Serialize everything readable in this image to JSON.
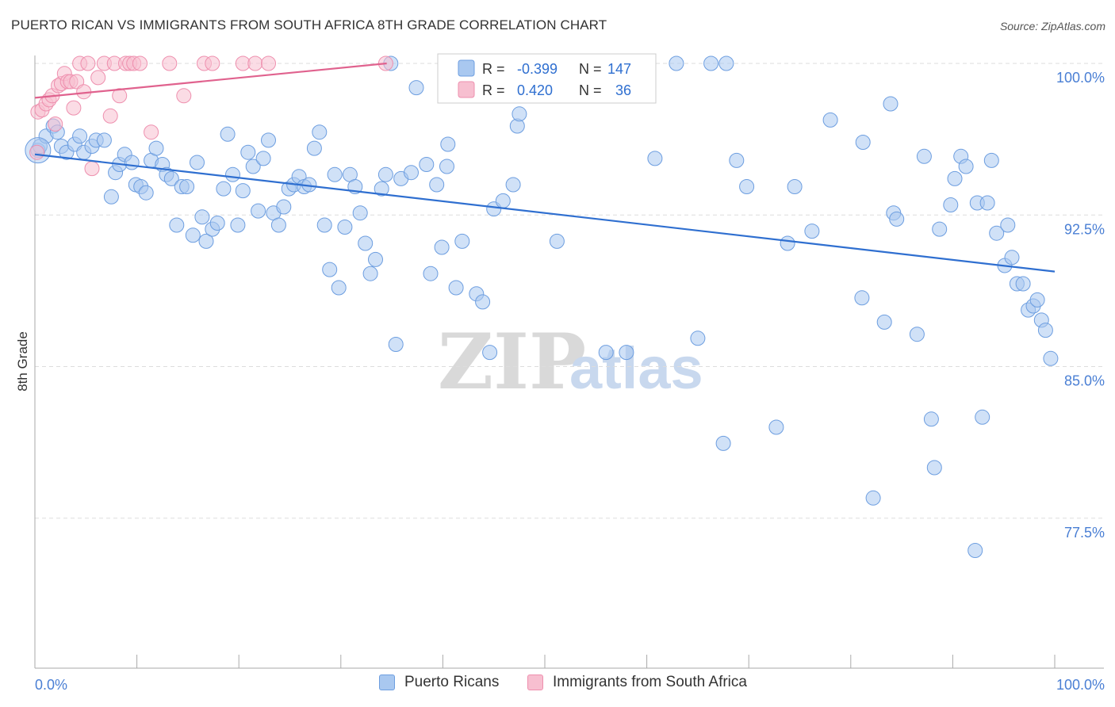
{
  "header": {
    "title": "PUERTO RICAN VS IMMIGRANTS FROM SOUTH AFRICA 8TH GRADE CORRELATION CHART",
    "source": "Source: ZipAtlas.com"
  },
  "watermark": {
    "zip": "ZIP",
    "atlas": "atlas"
  },
  "legend_top": {
    "rows": [
      {
        "r_label": "R =",
        "r_value": "-0.399",
        "n_label": "N =",
        "n_value": "147"
      },
      {
        "r_label": "R =",
        "r_value": "0.420",
        "n_label": "N =",
        "n_value": "36"
      }
    ]
  },
  "legend_bottom": {
    "items": [
      "Puerto Ricans",
      "Immigrants from South Africa"
    ]
  },
  "colors": {
    "blue_fill": "#a9c8f0",
    "blue_stroke": "#6d9ee0",
    "blue_line": "#2f6fd0",
    "pink_fill": "#f7bfd0",
    "pink_stroke": "#ee8fae",
    "pink_line": "#e0628e",
    "tick_text": "#4a7fd4",
    "grid": "#dddddd"
  },
  "chart_data": {
    "type": "scatter",
    "title": "PUERTO RICAN VS IMMIGRANTS FROM SOUTH AFRICA 8TH GRADE CORRELATION CHART",
    "xlabel": "",
    "ylabel": "8th Grade",
    "xlim": [
      0,
      100
    ],
    "ylim": [
      70.0,
      101.0
    ],
    "x_tick_labels": [
      "0.0%",
      "100.0%"
    ],
    "y_ticks": [
      77.5,
      85.0,
      92.5,
      100.0
    ],
    "y_tick_labels": [
      "77.5%",
      "85.0%",
      "92.5%",
      "100.0%"
    ],
    "grid": true,
    "legend_position": "top-center",
    "series": [
      {
        "name": "Puerto Ricans",
        "r": -0.399,
        "n": 147,
        "trend": {
          "x": [
            0,
            100
          ],
          "y": [
            95.5,
            89.7
          ]
        },
        "points": [
          [
            0.3,
            95.7
          ],
          [
            0.5,
            95.9
          ],
          [
            1.1,
            96.4
          ],
          [
            1.8,
            96.9
          ],
          [
            2.2,
            96.6
          ],
          [
            2.6,
            95.9
          ],
          [
            3.1,
            95.6
          ],
          [
            3.9,
            96.0
          ],
          [
            4.4,
            96.4
          ],
          [
            4.8,
            95.6
          ],
          [
            5.6,
            95.9
          ],
          [
            6.0,
            96.2
          ],
          [
            6.8,
            96.2
          ],
          [
            7.5,
            93.4
          ],
          [
            7.9,
            94.6
          ],
          [
            8.3,
            95.0
          ],
          [
            8.8,
            95.5
          ],
          [
            9.5,
            95.1
          ],
          [
            9.9,
            94.0
          ],
          [
            10.4,
            93.9
          ],
          [
            10.9,
            93.6
          ],
          [
            11.4,
            95.2
          ],
          [
            11.9,
            95.8
          ],
          [
            12.5,
            95.0
          ],
          [
            12.9,
            94.5
          ],
          [
            13.4,
            94.3
          ],
          [
            13.9,
            92.0
          ],
          [
            14.4,
            93.9
          ],
          [
            14.9,
            93.9
          ],
          [
            15.5,
            91.5
          ],
          [
            15.9,
            95.1
          ],
          [
            16.4,
            92.4
          ],
          [
            16.8,
            91.2
          ],
          [
            17.4,
            91.8
          ],
          [
            17.9,
            92.1
          ],
          [
            18.5,
            93.8
          ],
          [
            18.9,
            96.5
          ],
          [
            19.4,
            94.5
          ],
          [
            19.9,
            92.0
          ],
          [
            20.4,
            93.7
          ],
          [
            20.9,
            95.6
          ],
          [
            21.4,
            94.9
          ],
          [
            21.9,
            92.7
          ],
          [
            22.4,
            95.3
          ],
          [
            22.9,
            96.2
          ],
          [
            23.4,
            92.6
          ],
          [
            23.9,
            92.0
          ],
          [
            24.4,
            92.9
          ],
          [
            24.9,
            93.8
          ],
          [
            25.4,
            94.0
          ],
          [
            25.9,
            94.4
          ],
          [
            26.4,
            93.9
          ],
          [
            26.9,
            94.0
          ],
          [
            27.4,
            95.8
          ],
          [
            27.9,
            96.6
          ],
          [
            28.4,
            92.0
          ],
          [
            28.9,
            89.8
          ],
          [
            29.4,
            94.5
          ],
          [
            29.8,
            88.9
          ],
          [
            30.4,
            91.9
          ],
          [
            30.9,
            94.5
          ],
          [
            31.4,
            93.9
          ],
          [
            31.9,
            92.6
          ],
          [
            32.4,
            91.1
          ],
          [
            32.9,
            89.6
          ],
          [
            33.4,
            90.3
          ],
          [
            34.0,
            93.8
          ],
          [
            34.4,
            94.5
          ],
          [
            34.9,
            100.0
          ],
          [
            35.4,
            86.1
          ],
          [
            35.9,
            94.3
          ],
          [
            36.9,
            94.6
          ],
          [
            37.4,
            98.8
          ],
          [
            38.4,
            95.0
          ],
          [
            38.8,
            89.6
          ],
          [
            39.4,
            94.0
          ],
          [
            39.9,
            90.9
          ],
          [
            40.4,
            94.9
          ],
          [
            40.5,
            96.0
          ],
          [
            41.3,
            88.9
          ],
          [
            41.9,
            91.2
          ],
          [
            43.3,
            88.6
          ],
          [
            43.9,
            88.2
          ],
          [
            44.6,
            85.7
          ],
          [
            45.0,
            92.8
          ],
          [
            45.9,
            93.2
          ],
          [
            46.9,
            94.0
          ],
          [
            47.3,
            96.9
          ],
          [
            47.5,
            97.5
          ],
          [
            51.2,
            91.2
          ],
          [
            51.5,
            100.0
          ],
          [
            52.9,
            100.0
          ],
          [
            54.1,
            100.0
          ],
          [
            56.0,
            85.7
          ],
          [
            58.0,
            85.7
          ],
          [
            58.2,
            100.0
          ],
          [
            60.8,
            95.3
          ],
          [
            62.9,
            100.0
          ],
          [
            65.0,
            86.4
          ],
          [
            66.3,
            100.0
          ],
          [
            67.5,
            81.2
          ],
          [
            67.8,
            100.0
          ],
          [
            68.8,
            95.2
          ],
          [
            69.8,
            93.9
          ],
          [
            72.7,
            82.0
          ],
          [
            73.8,
            91.1
          ],
          [
            74.5,
            93.9
          ],
          [
            76.2,
            91.7
          ],
          [
            78.0,
            97.2
          ],
          [
            81.1,
            88.4
          ],
          [
            81.2,
            96.1
          ],
          [
            82.2,
            78.5
          ],
          [
            83.3,
            87.2
          ],
          [
            83.9,
            98.0
          ],
          [
            84.2,
            92.6
          ],
          [
            84.5,
            92.3
          ],
          [
            86.5,
            86.6
          ],
          [
            87.2,
            95.4
          ],
          [
            87.9,
            82.4
          ],
          [
            88.2,
            80.0
          ],
          [
            88.7,
            91.8
          ],
          [
            89.8,
            93.0
          ],
          [
            90.2,
            94.3
          ],
          [
            90.8,
            95.4
          ],
          [
            91.3,
            94.9
          ],
          [
            92.2,
            75.9
          ],
          [
            92.4,
            93.1
          ],
          [
            92.9,
            82.5
          ],
          [
            93.4,
            93.1
          ],
          [
            93.8,
            95.2
          ],
          [
            94.3,
            91.6
          ],
          [
            95.1,
            90.0
          ],
          [
            95.4,
            92.0
          ],
          [
            95.8,
            90.4
          ],
          [
            96.3,
            89.1
          ],
          [
            96.9,
            89.1
          ],
          [
            97.4,
            87.8
          ],
          [
            97.9,
            88.0
          ],
          [
            98.3,
            88.3
          ],
          [
            98.7,
            87.3
          ],
          [
            99.1,
            86.8
          ],
          [
            99.6,
            85.4
          ]
        ]
      },
      {
        "name": "Immigrants from South Africa",
        "r": 0.42,
        "n": 36,
        "trend": {
          "x": [
            0,
            34.5
          ],
          "y": [
            98.3,
            100.0
          ]
        },
        "points": [
          [
            0.3,
            97.6
          ],
          [
            0.7,
            97.7
          ],
          [
            1.1,
            98.0
          ],
          [
            1.4,
            98.2
          ],
          [
            1.7,
            98.4
          ],
          [
            2.0,
            97.0
          ],
          [
            2.3,
            98.9
          ],
          [
            2.6,
            99.0
          ],
          [
            2.9,
            99.5
          ],
          [
            3.2,
            99.1
          ],
          [
            3.5,
            99.1
          ],
          [
            3.8,
            97.8
          ],
          [
            4.1,
            99.1
          ],
          [
            4.4,
            100.0
          ],
          [
            4.8,
            98.6
          ],
          [
            5.2,
            100.0
          ],
          [
            5.6,
            94.8
          ],
          [
            6.2,
            99.3
          ],
          [
            6.8,
            100.0
          ],
          [
            7.4,
            97.4
          ],
          [
            7.8,
            100.0
          ],
          [
            8.3,
            98.4
          ],
          [
            8.9,
            100.0
          ],
          [
            9.3,
            100.0
          ],
          [
            9.7,
            100.0
          ],
          [
            10.3,
            100.0
          ],
          [
            11.4,
            96.6
          ],
          [
            13.2,
            100.0
          ],
          [
            14.6,
            98.4
          ],
          [
            16.6,
            100.0
          ],
          [
            17.4,
            100.0
          ],
          [
            20.4,
            100.0
          ],
          [
            21.6,
            100.0
          ],
          [
            22.9,
            100.0
          ],
          [
            34.4,
            100.0
          ],
          [
            0.2,
            95.6
          ]
        ]
      }
    ]
  }
}
